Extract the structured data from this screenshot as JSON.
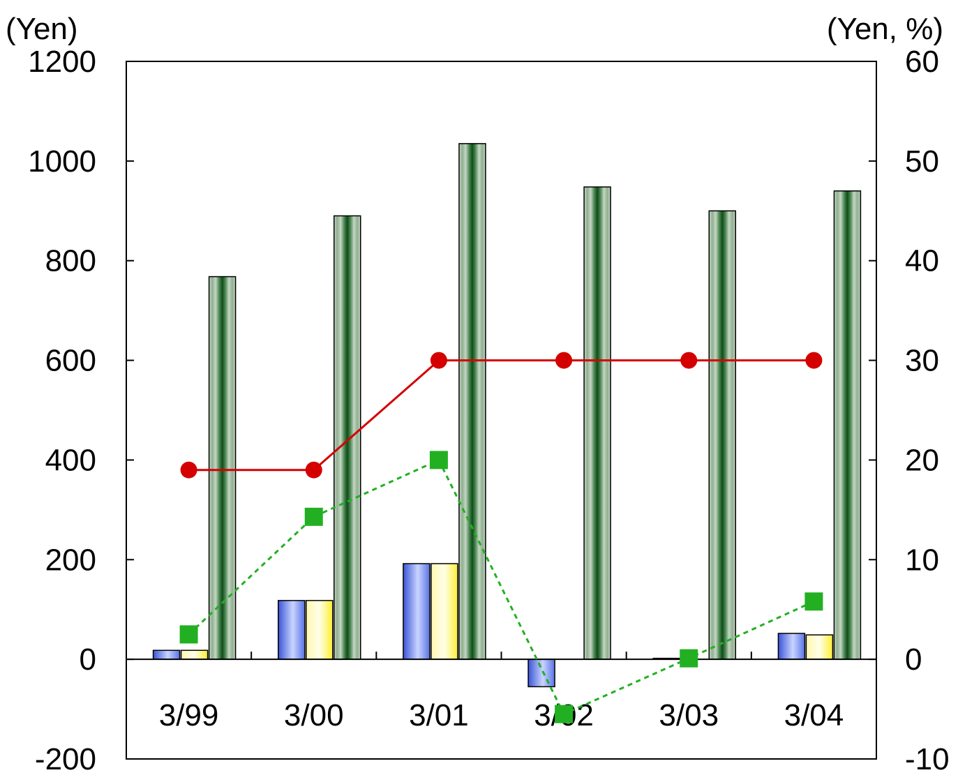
{
  "chart_data": {
    "type": "bar",
    "title": "",
    "categories": [
      "3/99",
      "3/00",
      "3/01",
      "3/02",
      "3/03",
      "3/04"
    ],
    "left_axis": {
      "unit_label": "(Yen)",
      "ylim": [
        -200,
        1200
      ],
      "ticks": [
        1200,
        1000,
        800,
        600,
        400,
        200,
        0,
        -200
      ],
      "tick_labels": [
        "1200",
        "1000",
        "800",
        "600",
        "400",
        "200",
        "0",
        "-200"
      ]
    },
    "right_axis": {
      "unit_label": "(Yen, %)",
      "ylim": [
        -10,
        60
      ],
      "ticks": [
        60,
        50,
        40,
        30,
        20,
        10,
        0,
        -10
      ],
      "tick_labels": [
        "60",
        "50",
        "40",
        "30",
        "20",
        "10",
        "0",
        "-10"
      ]
    },
    "bar_series": [
      {
        "axis": "left",
        "color": "#3b5bd9",
        "style": "blue-gradient",
        "values": [
          18,
          118,
          192,
          -55,
          2,
          52
        ]
      },
      {
        "axis": "left",
        "color": "#ffff33",
        "style": "yellow-gradient",
        "values": [
          18,
          118,
          192,
          0,
          0,
          49
        ]
      },
      {
        "axis": "left",
        "color": "#1d5a27",
        "style": "green-striped",
        "values": [
          768,
          890,
          1035,
          948,
          900,
          940
        ]
      }
    ],
    "line_series": [
      {
        "axis": "right",
        "color": "#d40000",
        "marker": "circle",
        "line": "solid",
        "values": [
          19,
          19,
          30,
          30,
          30,
          30
        ]
      },
      {
        "axis": "right",
        "color": "#22b022",
        "marker": "square",
        "line": "dotted",
        "values": [
          2.5,
          14.3,
          20,
          -5.5,
          0.1,
          5.8
        ]
      }
    ],
    "grid": false,
    "legend": "none"
  }
}
